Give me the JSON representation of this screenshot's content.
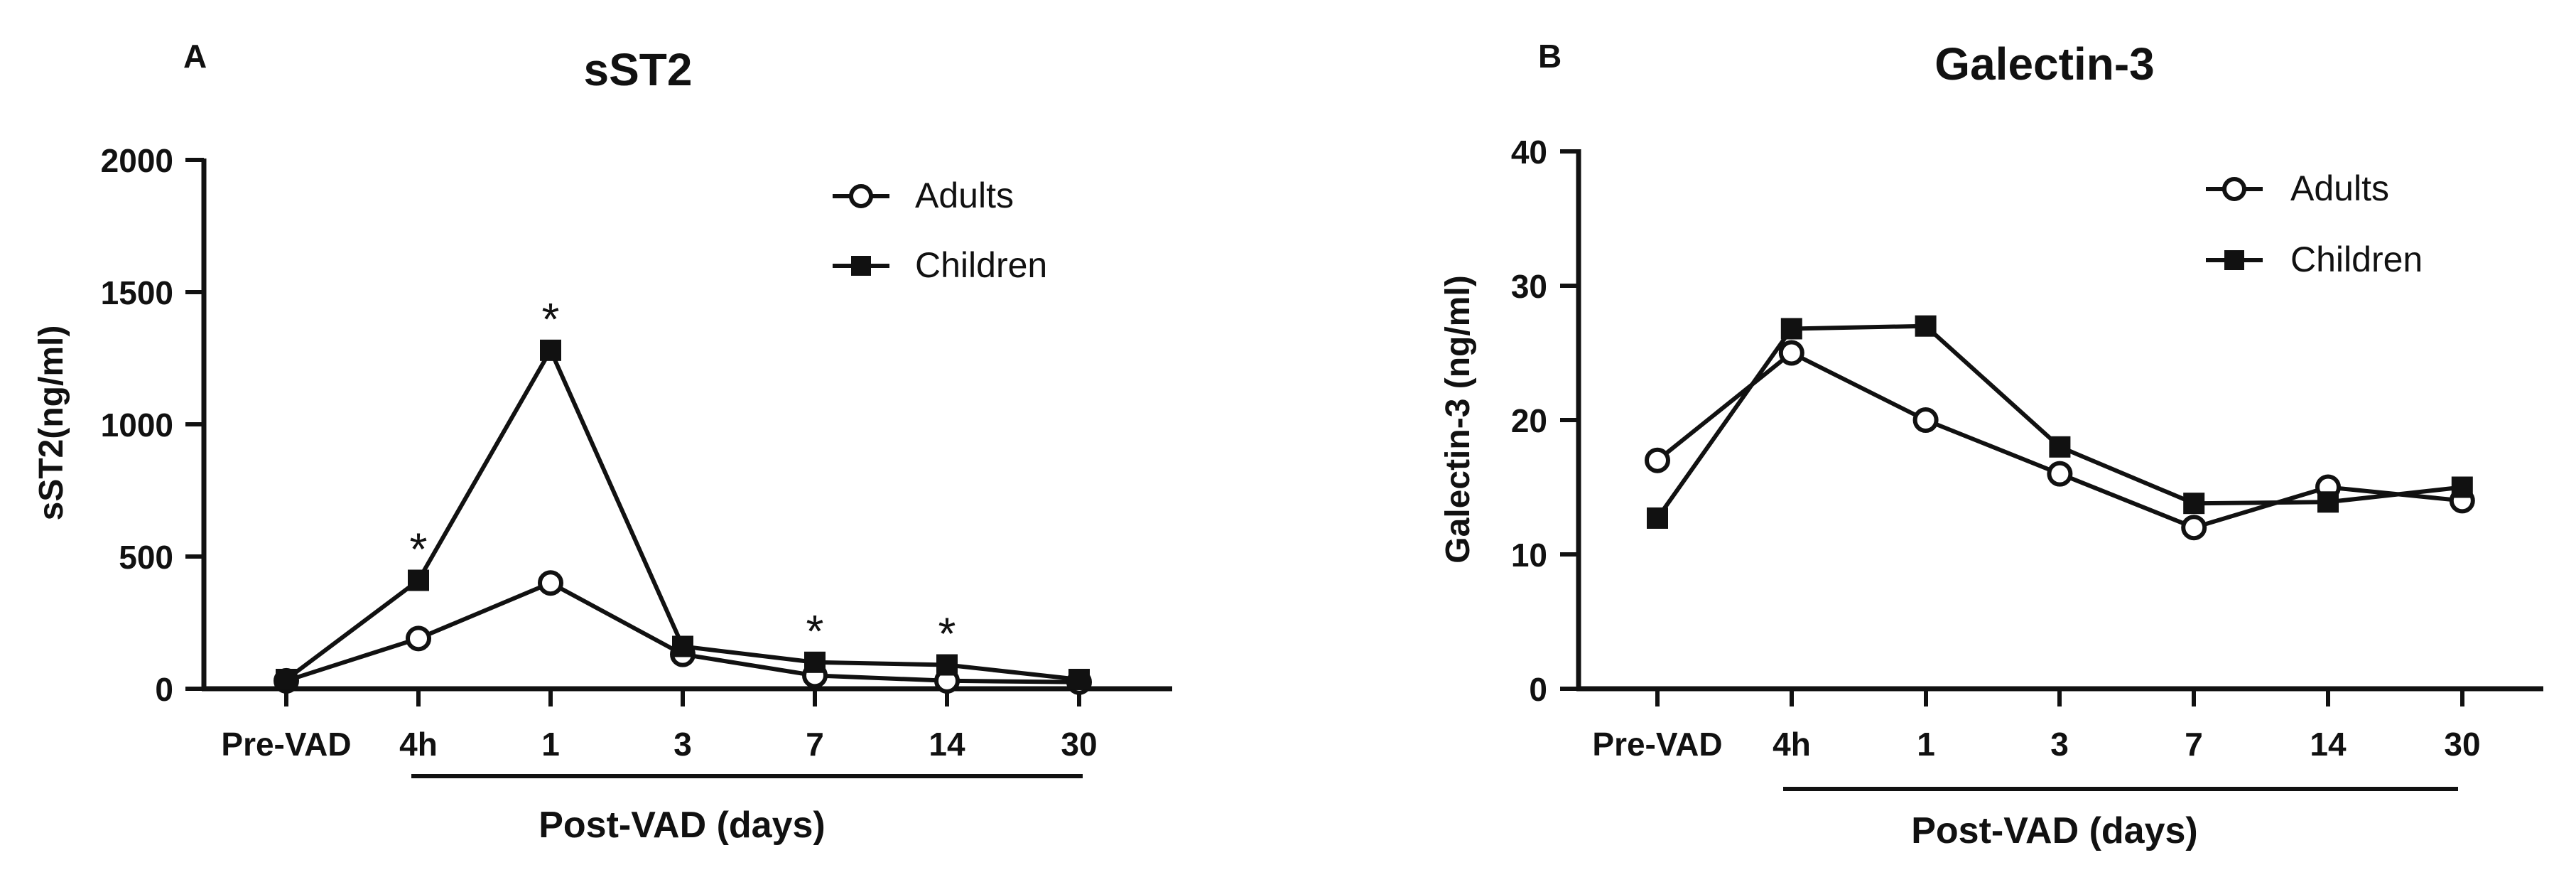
{
  "chart_data": [
    {
      "type": "line",
      "panel_label": "A",
      "title": "sST2",
      "ylabel": "sST2(ng/ml)",
      "xlabel": "Post-VAD (days)",
      "categories": [
        "Pre-VAD",
        "4h",
        "1",
        "3",
        "7",
        "14",
        "30"
      ],
      "ylim": [
        0,
        2000
      ],
      "yticks": [
        "0",
        "500",
        "1000",
        "1500",
        "2000"
      ],
      "series": [
        {
          "name": "Adults",
          "marker": "open-circle",
          "values": [
            30,
            190,
            400,
            130,
            50,
            30,
            25
          ]
        },
        {
          "name": "Children",
          "marker": "filled-square",
          "values": [
            35,
            410,
            1280,
            160,
            100,
            90,
            35
          ]
        }
      ],
      "significance": [
        {
          "category": "4h",
          "label": "*"
        },
        {
          "category": "1",
          "label": "*"
        },
        {
          "category": "7",
          "label": "*"
        },
        {
          "category": "14",
          "label": "*"
        }
      ],
      "legend_position": "top-right",
      "grid": false
    },
    {
      "type": "line",
      "panel_label": "B",
      "title": "Galectin-3",
      "ylabel": "Galectin-3 (ng/ml)",
      "xlabel": "Post-VAD (days)",
      "categories": [
        "Pre-VAD",
        "4h",
        "1",
        "3",
        "7",
        "14",
        "30"
      ],
      "ylim": [
        0,
        40
      ],
      "yticks": [
        "0",
        "10",
        "20",
        "30",
        "40"
      ],
      "series": [
        {
          "name": "Adults",
          "marker": "open-circle",
          "values": [
            17,
            25,
            20,
            16,
            12,
            15,
            14
          ]
        },
        {
          "name": "Children",
          "marker": "filled-square",
          "values": [
            12.7,
            26.8,
            27,
            18,
            13.8,
            13.9,
            15
          ]
        }
      ],
      "significance": [],
      "legend_position": "top-right",
      "grid": false
    }
  ]
}
